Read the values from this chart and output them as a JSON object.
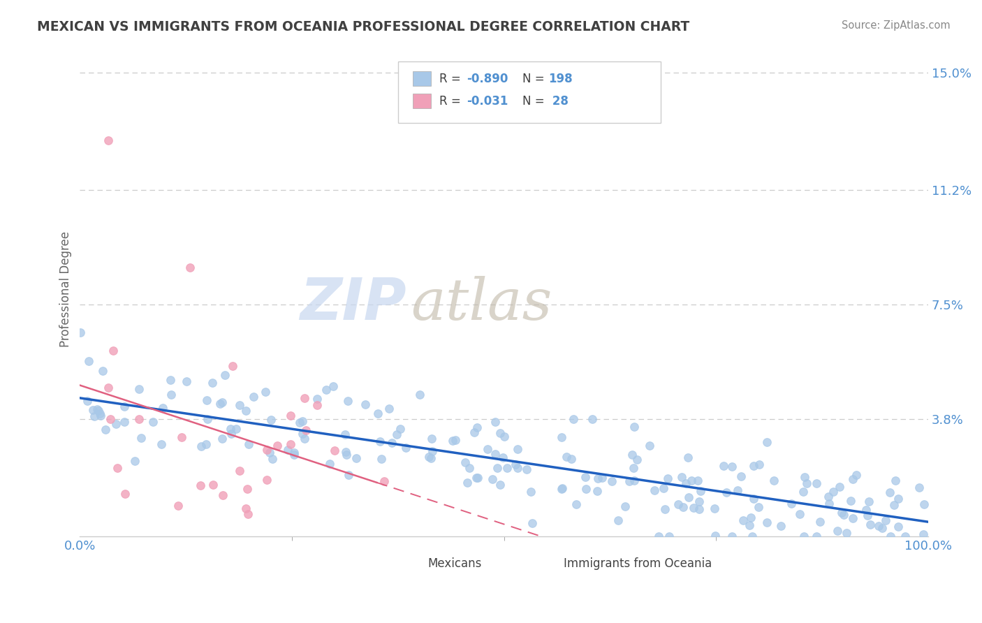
{
  "title": "MEXICAN VS IMMIGRANTS FROM OCEANIA PROFESSIONAL DEGREE CORRELATION CHART",
  "source": "Source: ZipAtlas.com",
  "ylabel": "Professional Degree",
  "ytick_vals": [
    0.038,
    0.075,
    0.112,
    0.15
  ],
  "ytick_labels": [
    "3.8%",
    "7.5%",
    "11.2%",
    "15.0%"
  ],
  "xlim": [
    0.0,
    1.0
  ],
  "ylim": [
    0.0,
    0.16
  ],
  "mexicans_N": 198,
  "oceania_N": 28,
  "blue_scatter_color": "#a8c8e8",
  "pink_scatter_color": "#f0a0b8",
  "blue_line_color": "#2060c0",
  "pink_line_color": "#e06080",
  "watermark_zip_color": "#c8d8f0",
  "watermark_atlas_color": "#c0b8a8",
  "background_color": "#ffffff",
  "grid_color": "#cccccc",
  "title_color": "#404040",
  "axis_tick_color": "#5090d0",
  "legend_text_color": "#404040",
  "legend_val_color": "#5090d0",
  "legend_box_edge": "#cccccc",
  "bottom_legend_labels": [
    "Mexicans",
    "Immigrants from Oceania"
  ],
  "marker_size": 70,
  "marker_linewidth": 0.8
}
